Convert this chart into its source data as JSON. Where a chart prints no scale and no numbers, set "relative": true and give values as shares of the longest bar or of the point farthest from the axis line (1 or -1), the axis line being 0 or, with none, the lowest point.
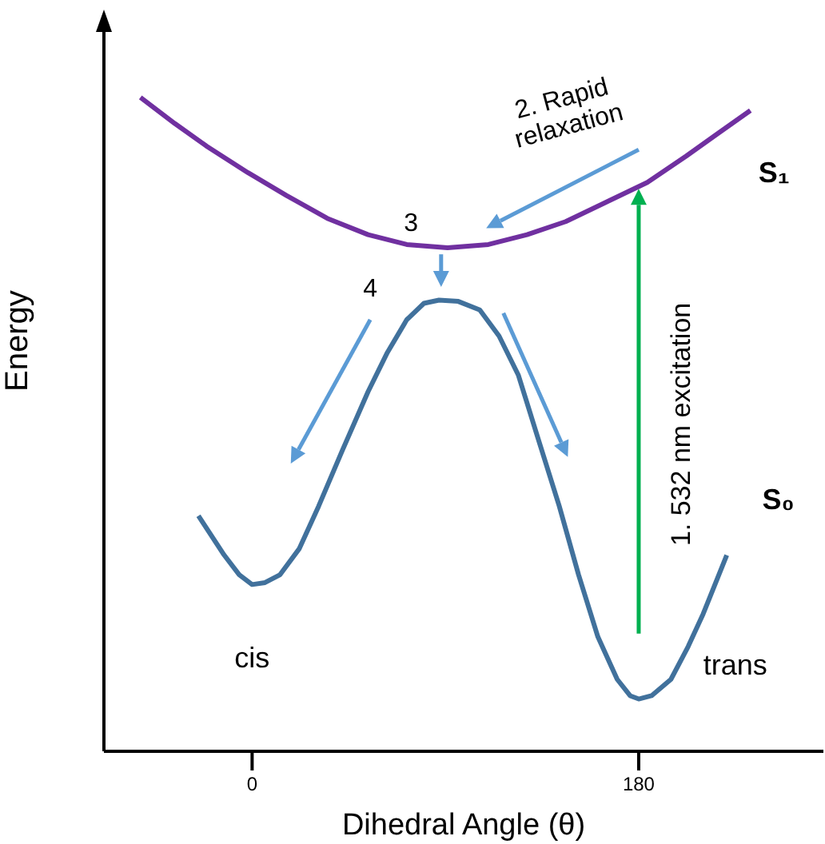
{
  "chart_data": {
    "type": "line",
    "relative": true,
    "xlabel": "Dihedral Angle (θ)",
    "ylabel": "Energy",
    "xlim": [
      -69,
      266
    ],
    "xticks": [
      0,
      180
    ],
    "marker": "none",
    "line_style": "solid",
    "series": [
      {
        "name": "S₁",
        "color": "#7030a0",
        "x": [
          -52,
          -36,
          -21,
          -2,
          16,
          35,
          54,
          72,
          91,
          110,
          128,
          146,
          165,
          184,
          202,
          217,
          232
        ],
        "values": [
          1.0,
          0.96,
          0.925,
          0.885,
          0.85,
          0.815,
          0.79,
          0.775,
          0.77,
          0.775,
          0.79,
          0.81,
          0.84,
          0.87,
          0.91,
          0.945,
          0.98
        ]
      },
      {
        "name": "S₀",
        "color": "#41719c",
        "x": [
          -25,
          -13,
          -6,
          0,
          6,
          13,
          22,
          31,
          42,
          54,
          63,
          72,
          80,
          87,
          96,
          106,
          115,
          124,
          133,
          143,
          152,
          161,
          170,
          176,
          180,
          186,
          195,
          203,
          210,
          221
        ],
        "values": [
          0.36,
          0.3,
          0.27,
          0.255,
          0.258,
          0.27,
          0.31,
          0.375,
          0.46,
          0.55,
          0.61,
          0.66,
          0.685,
          0.69,
          0.688,
          0.675,
          0.635,
          0.575,
          0.48,
          0.375,
          0.27,
          0.175,
          0.11,
          0.085,
          0.08,
          0.085,
          0.11,
          0.16,
          0.21,
          0.3
        ]
      }
    ],
    "annotations": [
      "1. 532 nm excitation",
      "2. Rapid relaxation",
      "3",
      "4",
      "cis",
      "trans"
    ]
  }
}
